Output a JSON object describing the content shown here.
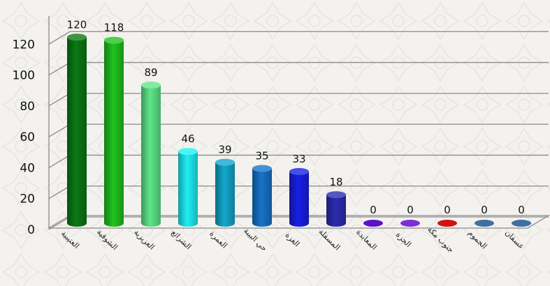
{
  "chart_data": {
    "type": "bar",
    "categories": [
      "العتيبية",
      "الشوقية",
      "العزيزية",
      "الشرائع",
      "العمرة",
      "حي البيبة",
      "الغزة",
      "المسفلة",
      "المعابدة",
      "الجزة",
      "جنوب مكة",
      "الجموم",
      "عسفان"
    ],
    "values": [
      120,
      118,
      89,
      46,
      39,
      35,
      33,
      18,
      0,
      0,
      0,
      0,
      0
    ],
    "colors": [
      "#0a7a14",
      "#1fc41f",
      "#5fe68a",
      "#1ef0f4",
      "#12a8cc",
      "#1674c9",
      "#1820e6",
      "#2d2cb0",
      "#5a12c8",
      "#7a2fd8",
      "#d01212",
      "#3f6ea3",
      "#3f6ea3"
    ],
    "ylim": [
      0,
      140
    ],
    "yticks": [
      0,
      20,
      40,
      60,
      80,
      100,
      120
    ],
    "grid": true
  }
}
